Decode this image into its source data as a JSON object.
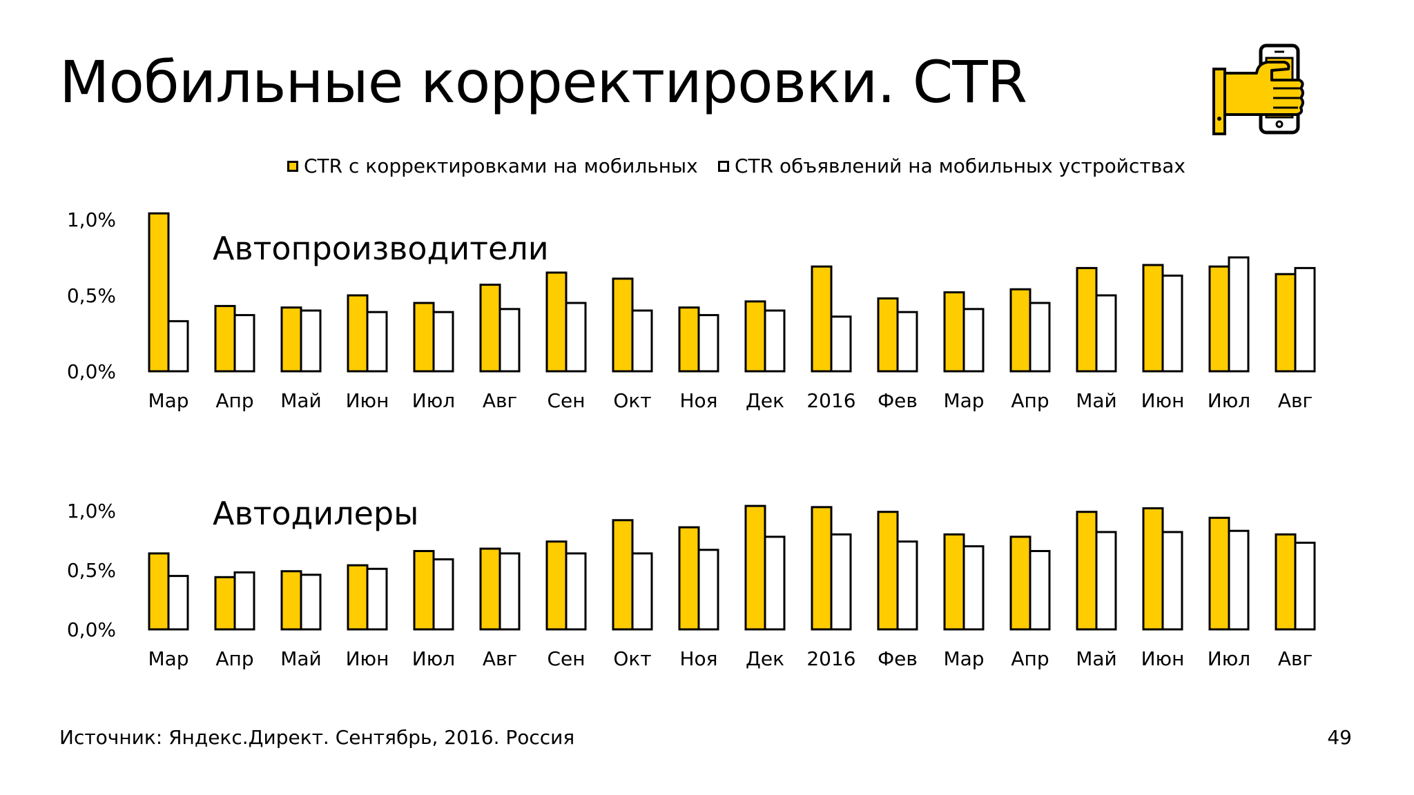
{
  "slide": {
    "title": "Мобильные корректировки. CTR",
    "source": "Источник: Яндекс.Директ. Сентябрь, 2016. Россия",
    "page_number": "49"
  },
  "legend": {
    "series_a": "CTR с корректировками на мобильных",
    "series_b": "CTR объявлений на мобильных устройствах"
  },
  "colors": {
    "accent": "#ffcc00",
    "outline": "#000000",
    "background": "#ffffff"
  },
  "icons": {
    "header": "hand-holding-phone-icon"
  },
  "chart_data": [
    {
      "type": "bar",
      "title": "Автопроизводители",
      "categories": [
        "Мар",
        "Апр",
        "Май",
        "Июн",
        "Июл",
        "Авг",
        "Сен",
        "Окт",
        "Ноя",
        "Дек",
        "2016",
        "Фев",
        "Мар",
        "Апр",
        "Май",
        "Июн",
        "Июл",
        "Авг"
      ],
      "series": [
        {
          "name": "CTR с корректировками на мобильных",
          "color": "#ffcc00",
          "values": [
            1.04,
            0.43,
            0.42,
            0.5,
            0.45,
            0.57,
            0.65,
            0.61,
            0.42,
            0.46,
            0.69,
            0.48,
            0.52,
            0.54,
            0.68,
            0.7,
            0.69,
            0.64
          ]
        },
        {
          "name": "CTR объявлений на мобильных устройствах",
          "color": "#ffffff",
          "values": [
            0.33,
            0.37,
            0.4,
            0.39,
            0.39,
            0.41,
            0.45,
            0.4,
            0.37,
            0.4,
            0.36,
            0.39,
            0.41,
            0.45,
            0.5,
            0.63,
            0.75,
            0.68
          ]
        }
      ],
      "yticks": [
        "1,0%",
        "0,5%",
        "0,0%"
      ],
      "ylim": [
        0,
        1.0
      ],
      "grid": false,
      "legend": "top"
    },
    {
      "type": "bar",
      "title": "Автодилеры",
      "categories": [
        "Мар",
        "Апр",
        "Май",
        "Июн",
        "Июл",
        "Авг",
        "Сен",
        "Окт",
        "Ноя",
        "Дек",
        "2016",
        "Фев",
        "Мар",
        "Апр",
        "Май",
        "Июн",
        "Июл",
        "Авг"
      ],
      "series": [
        {
          "name": "CTR с корректировками на мобильных",
          "color": "#ffcc00",
          "values": [
            0.64,
            0.44,
            0.49,
            0.54,
            0.66,
            0.68,
            0.74,
            0.92,
            0.86,
            1.04,
            1.03,
            0.99,
            0.8,
            0.78,
            0.99,
            1.02,
            0.94,
            0.8
          ]
        },
        {
          "name": "CTR объявлений на мобильных устройствах",
          "color": "#ffffff",
          "values": [
            0.45,
            0.48,
            0.46,
            0.51,
            0.59,
            0.64,
            0.64,
            0.64,
            0.67,
            0.78,
            0.8,
            0.74,
            0.7,
            0.66,
            0.82,
            0.82,
            0.83,
            0.73
          ]
        }
      ],
      "yticks": [
        "1,0%",
        "0,5%",
        "0,0%"
      ],
      "ylim": [
        0,
        1.0
      ],
      "grid": false,
      "legend": "top"
    }
  ]
}
